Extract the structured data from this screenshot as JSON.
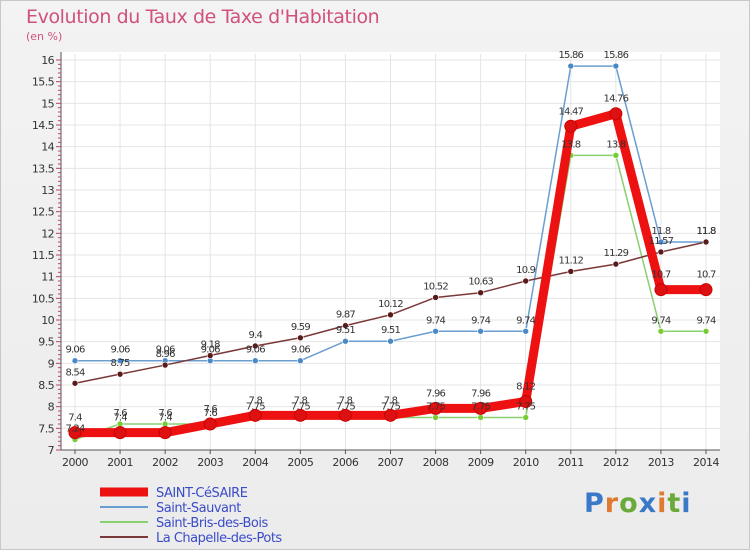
{
  "title": "Evolution du Taux de Taxe d'Habitation",
  "unit_label": "(en %)",
  "logo": {
    "text": "Proxiti",
    "letters": [
      "P",
      "r",
      "o",
      "x",
      "i",
      "t",
      "i"
    ],
    "colors": [
      "#3a78c8",
      "#e07a2e",
      "#6aaa3a",
      "#3a78c8",
      "#e07a2e",
      "#6aaa3a",
      "#3a78c8"
    ]
  },
  "chart_data": {
    "type": "line",
    "title": "Evolution du Taux de Taxe d'Habitation",
    "ylabel": "(en %)",
    "xlabel": "",
    "categories": [
      "2000",
      "2001",
      "2002",
      "2003",
      "2004",
      "2005",
      "2006",
      "2007",
      "2008",
      "2009",
      "2010",
      "2011",
      "2012",
      "2013",
      "2014"
    ],
    "ylim": [
      7,
      16
    ],
    "yticks": [
      "7",
      "7.5",
      "8",
      "8.5",
      "9",
      "9.5",
      "10",
      "10.5",
      "11",
      "11.5",
      "12",
      "12.5",
      "13",
      "13.5",
      "14",
      "14.5",
      "15",
      "15.5",
      "16"
    ],
    "legend_position": "bottom-left",
    "series": [
      {
        "name": "SAINT-CéSAIRE",
        "color": "#ee1111",
        "marker": "#dd1111",
        "width": 9,
        "values": [
          7.4,
          7.4,
          7.4,
          7.6,
          7.8,
          7.8,
          7.8,
          7.8,
          7.96,
          7.96,
          8.12,
          14.47,
          14.76,
          10.7,
          10.7
        ],
        "labels": [
          "7.4",
          "7.4",
          "7.4",
          "7.6",
          "7.8",
          "7.8",
          "7.8",
          "7.8",
          "7.96",
          "7.96",
          "8.12",
          "14.47",
          "14.76",
          "10.7",
          "10.7"
        ]
      },
      {
        "name": "Saint-Sauvant",
        "color": "#6a9ed0",
        "marker": "#4a88c8",
        "width": 1.5,
        "values": [
          9.06,
          9.06,
          9.06,
          9.06,
          9.06,
          9.06,
          9.51,
          9.51,
          9.74,
          9.74,
          9.74,
          15.86,
          15.86,
          11.8,
          11.8
        ],
        "labels": [
          "9.06",
          "9.06",
          "9.06",
          "9.06",
          "9.06",
          "9.06",
          "9.51",
          "9.51",
          "9.74",
          "9.74",
          "9.74",
          "15.86",
          "15.86",
          "11.8",
          "11.8"
        ]
      },
      {
        "name": "Saint-Bris-des-Bois",
        "color": "#88d070",
        "marker": "#77cc33",
        "width": 1.5,
        "values": [
          7.24,
          7.6,
          7.6,
          7.6,
          7.75,
          7.75,
          7.75,
          7.75,
          7.75,
          7.75,
          7.75,
          13.8,
          13.8,
          9.74,
          9.74
        ],
        "labels": [
          "7.24",
          "7.6",
          "7.6",
          "7.6",
          "7.75",
          "7.75",
          "7.75",
          "7.75",
          "7.75",
          "7.75",
          "7.75",
          "13.8",
          "13.8",
          "9.74",
          "9.74"
        ]
      },
      {
        "name": "La Chapelle-des-Pots",
        "color": "#7a3838",
        "marker": "#5a1a1a",
        "width": 1.5,
        "values": [
          8.54,
          8.75,
          8.96,
          9.18,
          9.4,
          9.59,
          9.87,
          10.12,
          10.52,
          10.63,
          10.9,
          11.12,
          11.29,
          11.57,
          11.8
        ],
        "labels": [
          "8.54",
          "8.75",
          "8.96",
          "9.18",
          "9.4",
          "9.59",
          "9.87",
          "10.12",
          "10.52",
          "10.63",
          "10.9",
          "11.12",
          "11.29",
          "11.57",
          "11.8"
        ]
      }
    ]
  }
}
